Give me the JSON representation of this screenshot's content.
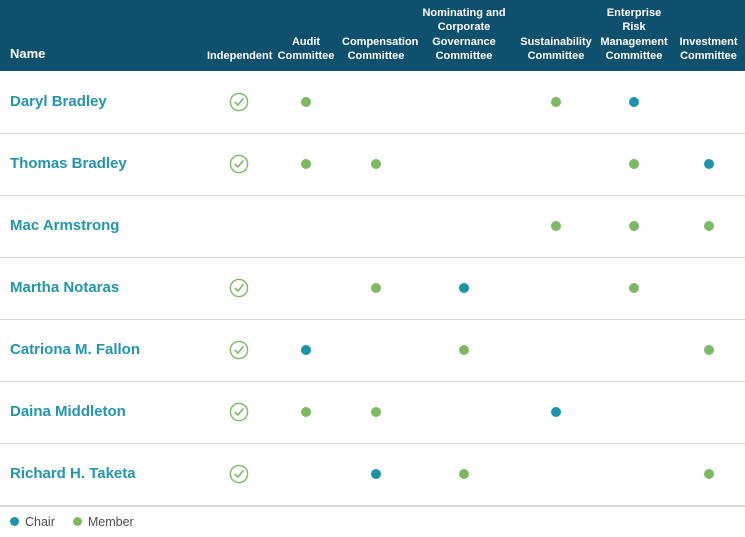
{
  "colors": {
    "header_bg": "#0e506e",
    "name_link": "#2196ad",
    "chair_dot": "#1b94ab",
    "member_dot": "#7cba61",
    "independent_check": "#7cba61",
    "row_divider": "#d8d8d8"
  },
  "table": {
    "headers": {
      "name": "Name",
      "independent": "Independent",
      "audit": "Audit Committee",
      "compensation": "Compensation Committee",
      "nominating": "Nominating and Corporate Governance Committee",
      "sustainability": "Sustainability Committee",
      "enterprise_risk": "Enterprise Risk Management Committee",
      "investment": "Investment Committee"
    },
    "committee_keys": [
      "audit",
      "compensation",
      "nominating",
      "sustainability",
      "enterprise_risk",
      "investment"
    ],
    "rows": [
      {
        "name": "Daryl Bradley",
        "independent": true,
        "roles": {
          "audit": "member",
          "compensation": "",
          "nominating": "",
          "sustainability": "member",
          "enterprise_risk": "chair",
          "investment": ""
        }
      },
      {
        "name": "Thomas Bradley",
        "independent": true,
        "roles": {
          "audit": "member",
          "compensation": "member",
          "nominating": "",
          "sustainability": "",
          "enterprise_risk": "member",
          "investment": "chair"
        }
      },
      {
        "name": "Mac Armstrong",
        "independent": false,
        "roles": {
          "audit": "",
          "compensation": "",
          "nominating": "",
          "sustainability": "member",
          "enterprise_risk": "member",
          "investment": "member"
        }
      },
      {
        "name": "Martha Notaras",
        "independent": true,
        "roles": {
          "audit": "",
          "compensation": "member",
          "nominating": "chair",
          "sustainability": "",
          "enterprise_risk": "member",
          "investment": ""
        }
      },
      {
        "name": "Catriona M. Fallon",
        "independent": true,
        "roles": {
          "audit": "chair",
          "compensation": "",
          "nominating": "member",
          "sustainability": "",
          "enterprise_risk": "",
          "investment": "member"
        }
      },
      {
        "name": "Daina Middleton",
        "independent": true,
        "roles": {
          "audit": "member",
          "compensation": "member",
          "nominating": "",
          "sustainability": "chair",
          "enterprise_risk": "",
          "investment": ""
        }
      },
      {
        "name": "Richard H. Taketa",
        "independent": true,
        "roles": {
          "audit": "",
          "compensation": "chair",
          "nominating": "member",
          "sustainability": "",
          "enterprise_risk": "",
          "investment": "member"
        }
      }
    ]
  },
  "legend": {
    "chair_label": "Chair",
    "member_label": "Member"
  }
}
